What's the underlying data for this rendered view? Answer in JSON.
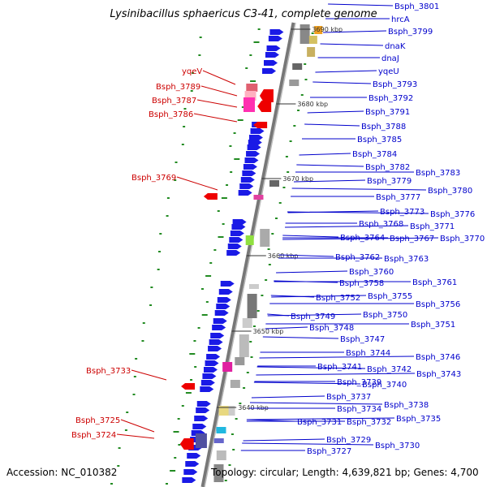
{
  "header": {
    "title": "Lysinibacillus sphaericus C3-41, complete genome"
  },
  "footer": {
    "accession": "Accession: NC_010382",
    "info": "Topology: circular; Length: 4,639,821 bp; Genes: 4,700"
  },
  "colors": {
    "forward_strand": "#1a1ae6",
    "reverse_strand": "#ee0000",
    "label_forward": "#0000cc",
    "label_reverse": "#cc0000",
    "backbone": "#999999",
    "gc_marks": "#228b22"
  },
  "ticks": [
    "3690 kbp",
    "3680 kbp",
    "3670 kbp",
    "3660 kbp",
    "3650 kbp",
    "3640 kbp"
  ],
  "labels_forward": [
    "Bsph_3801",
    "hrcA",
    "Bsph_3799",
    "dnaK",
    "dnaJ",
    "yqeU",
    "Bsph_3793",
    "Bsph_3792",
    "Bsph_3791",
    "Bsph_3788",
    "Bsph_3785",
    "Bsph_3784",
    "Bsph_3782",
    "Bsph_3783",
    "Bsph_3779",
    "Bsph_3780",
    "Bsph_3777",
    "Bsph_3773",
    "Bsph_3776",
    "Bsph_3768",
    "Bsph_3771",
    "Bsph_3764",
    "Bsph_3767",
    "Bsph_3770",
    "Bsph_3762",
    "Bsph_3763",
    "Bsph_3760",
    "Bsph_3758",
    "Bsph_3761",
    "Bsph_3755",
    "Bsph_3752",
    "Bsph_3756",
    "Bsph_3750",
    "Bsph_3749",
    "Bsph_3751",
    "Bsph_3748",
    "Bsph_3747",
    "Bsph_3744",
    "Bsph_3746",
    "Bsph_3742",
    "Bsph_3741",
    "Bsph_3743",
    "Bsph_3740",
    "Bsph_3739",
    "Bsph_3737",
    "Bsph_3738",
    "Bsph_3734",
    "Bsph_3735",
    "Bsph_3731",
    "Bsph_3732",
    "Bsph_3729",
    "Bsph_3730",
    "Bsph_3727"
  ],
  "labels_reverse": [
    "yqeV",
    "Bsph_3789",
    "Bsph_3787",
    "Bsph_3786",
    "Bsph_3769",
    "Bsph_3733",
    "Bsph_3725",
    "Bsph_3724"
  ]
}
